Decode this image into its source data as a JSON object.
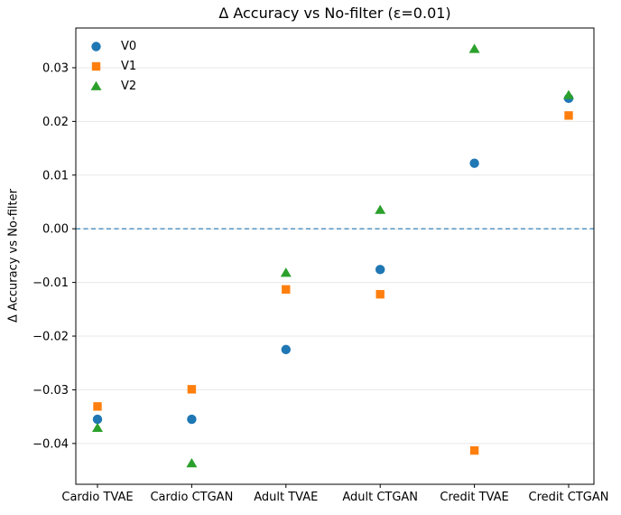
{
  "figure": {
    "background": "#ffffff",
    "axis_color": "#000000",
    "grid_color": "#e7e7e7",
    "tick_label_color": "#000000"
  },
  "chart_data": {
    "type": "scatter",
    "title": "Δ Accuracy vs No-filter (ε=0.01)",
    "xlabel": "",
    "ylabel": "Δ Accuracy vs No-filter",
    "categories": [
      "Cardio TVAE",
      "Cardio CTGAN",
      "Adult TVAE",
      "Adult CTGAN",
      "Credit TVAE",
      "Credit CTGAN"
    ],
    "series": [
      {
        "name": "V0",
        "marker": "circle",
        "color": "#1f77b4",
        "values": [
          -0.0355,
          -0.0355,
          -0.0225,
          -0.0076,
          0.0122,
          0.0243
        ]
      },
      {
        "name": "V1",
        "marker": "square",
        "color": "#ff7f0e",
        "values": [
          -0.0331,
          -0.0299,
          -0.0113,
          -0.0122,
          -0.0413,
          0.0211
        ]
      },
      {
        "name": "V2",
        "marker": "triangle",
        "color": "#2ca02c",
        "values": [
          -0.0371,
          -0.0437,
          -0.0082,
          0.0035,
          0.0335,
          0.0249
        ]
      }
    ],
    "yticks": [
      0.03,
      0.02,
      0.01,
      0.0,
      -0.01,
      -0.02,
      -0.03,
      -0.04
    ],
    "ytick_labels": [
      "0.03",
      "0.02",
      "0.01",
      "0.00",
      "−0.01",
      "−0.02",
      "−0.03",
      "−0.04"
    ],
    "ylim": [
      -0.0476,
      0.0374
    ],
    "grid": true,
    "legend_position": "upper left",
    "zero_line": {
      "value": 0.0,
      "style": "dashed",
      "color": "#1f77b4"
    }
  }
}
